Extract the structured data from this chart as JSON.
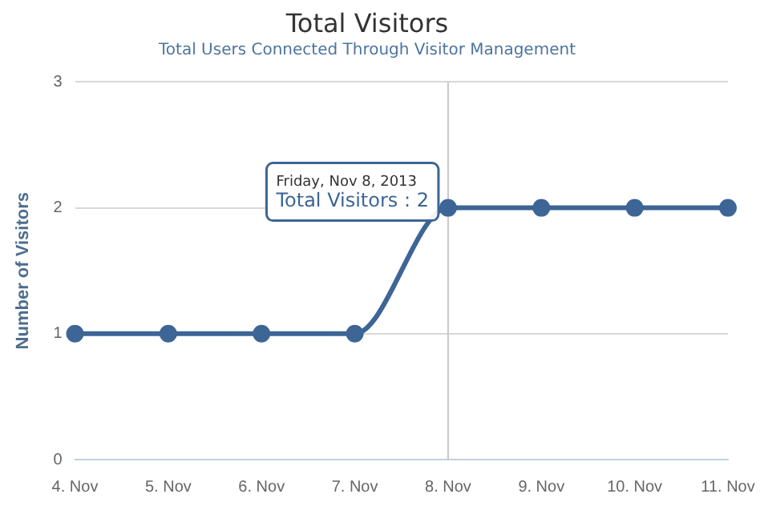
{
  "chart_data": {
    "type": "line",
    "title": "Total Visitors",
    "subtitle": "Total Users Connected Through Visitor Management",
    "ylabel": "Number of Visitors",
    "categories": [
      "4. Nov",
      "5. Nov",
      "6. Nov",
      "7. Nov",
      "8. Nov",
      "9. Nov",
      "10. Nov",
      "11. Nov"
    ],
    "series": [
      {
        "color": "#3d6596",
        "values": [
          1,
          1,
          1,
          1,
          2,
          2,
          2,
          2
        ]
      }
    ],
    "ylim": [
      0,
      3
    ],
    "yticks": [
      0,
      1,
      2,
      3
    ],
    "grid": "y",
    "legend": false,
    "marker": "circle",
    "line_style": "solid",
    "ref_lines": [
      {
        "axis": "x",
        "value": "8. Nov",
        "color": "#c8c8c8"
      }
    ],
    "annotations": [
      {
        "text": "Friday, Nov 8, 2013\nTotal Visitors : 2",
        "x": "8. Nov",
        "y": 2
      }
    ]
  }
}
